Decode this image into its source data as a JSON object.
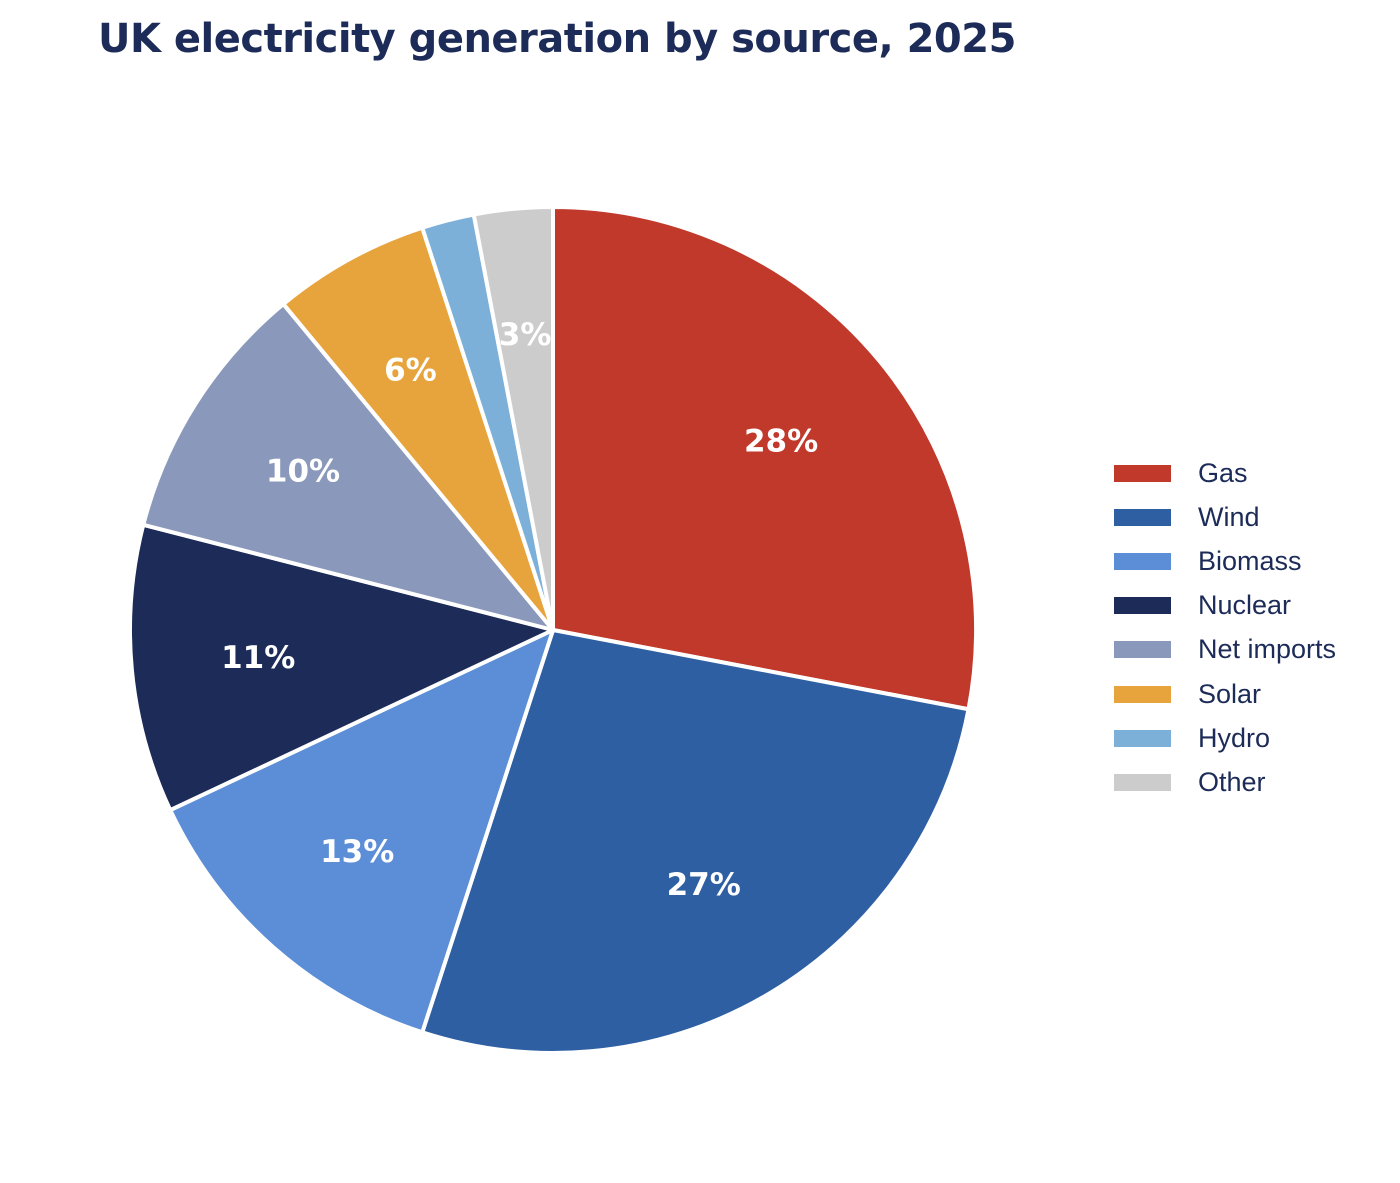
{
  "chart_data": {
    "type": "pie",
    "title": "UK electricity generation by source, 2025",
    "slices": [
      {
        "name": "Gas",
        "value": 28,
        "label": "28%",
        "color": "#c0392b"
      },
      {
        "name": "Wind",
        "value": 27,
        "label": "27%",
        "color": "#2f5fa3"
      },
      {
        "name": "Biomass",
        "value": 13,
        "label": "13%",
        "color": "#5b8ed6"
      },
      {
        "name": "Nuclear",
        "value": 11,
        "label": "11%",
        "color": "#1c2b57"
      },
      {
        "name": "Net imports",
        "value": 10,
        "label": "10%",
        "color": "#8a99bb"
      },
      {
        "name": "Solar",
        "value": 6,
        "label": "6%",
        "color": "#e8a43c"
      },
      {
        "name": "Hydro",
        "value": 2,
        "label": "",
        "color": "#7db0d8"
      },
      {
        "name": "Other",
        "value": 3,
        "label": "3%",
        "color": "#cccccc"
      }
    ],
    "legend_position": "right",
    "start_angle": "12 o'clock",
    "direction": "clockwise"
  }
}
